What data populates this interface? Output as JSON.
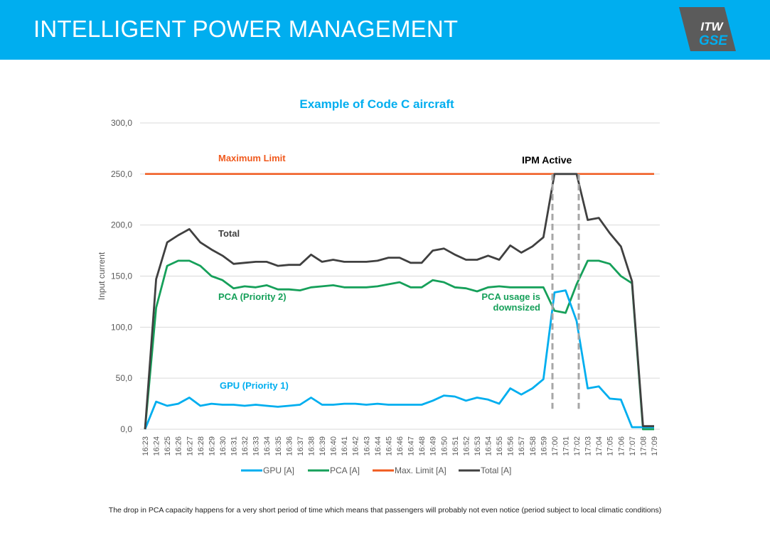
{
  "header": {
    "title": "INTELLIGENT POWER MANAGEMENT"
  },
  "logo": {
    "line1": "ITW",
    "line2": "GSE"
  },
  "footer": {
    "note": "The drop in PCA capacity happens for a very short period of time which means that passengers will probably not even notice  (period subject to local climatic conditions)"
  },
  "colors": {
    "header": "#00AEEF",
    "gpu": "#00AEEF",
    "pca": "#16A05A",
    "max": "#F05A1E",
    "total": "#404040",
    "ipm_lines": "#A6A6A6",
    "grid": "#D9D9D9"
  },
  "chart_data": {
    "type": "line",
    "title": "Example of Code C aircraft",
    "xlabel": "",
    "ylabel": "Input current",
    "ylim": [
      0,
      300
    ],
    "yticks": [
      "0,0",
      "50,0",
      "100,0",
      "150,0",
      "200,0",
      "250,0",
      "300,0"
    ],
    "grid": true,
    "legend_position": "bottom",
    "x": [
      "16:23",
      "16:24",
      "16:25",
      "16:26",
      "16:27",
      "16:28",
      "16:29",
      "16:30",
      "16:31",
      "16:32",
      "16:33",
      "16:34",
      "16:35",
      "16:36",
      "16:37",
      "16:38",
      "16:39",
      "16:40",
      "16:41",
      "16:42",
      "16:43",
      "16:44",
      "16:45",
      "16:46",
      "16:47",
      "16:48",
      "16:49",
      "16:50",
      "16:51",
      "16:52",
      "16:53",
      "16:54",
      "16:55",
      "16:56",
      "16:57",
      "16:58",
      "16:59",
      "17:00",
      "17:01",
      "17:02",
      "17:03",
      "17:04",
      "17:05",
      "17:06",
      "17:07",
      "17:08",
      "17:09"
    ],
    "series": [
      {
        "name": "GPU [A]",
        "color": "#00AEEF",
        "values": [
          0,
          27,
          23,
          25,
          31,
          23,
          25,
          24,
          24,
          23,
          24,
          23,
          22,
          23,
          24,
          31,
          24,
          24,
          25,
          25,
          24,
          25,
          24,
          24,
          24,
          24,
          28,
          33,
          32,
          28,
          31,
          29,
          25,
          40,
          34,
          40,
          49,
          134,
          136,
          106,
          40,
          42,
          30,
          29,
          2,
          2,
          2
        ]
      },
      {
        "name": "PCA [A]",
        "color": "#16A05A",
        "values": [
          0,
          119,
          160,
          165,
          165,
          160,
          150,
          146,
          138,
          140,
          139,
          141,
          137,
          137,
          136,
          139,
          140,
          141,
          139,
          139,
          139,
          140,
          142,
          144,
          139,
          139,
          146,
          144,
          139,
          138,
          135,
          139,
          140,
          139,
          139,
          139,
          139,
          116,
          114,
          142,
          165,
          165,
          162,
          150,
          143,
          0,
          0
        ]
      },
      {
        "name": "Max. Limit [A]",
        "color": "#F05A1E",
        "values": [
          250,
          250,
          250,
          250,
          250,
          250,
          250,
          250,
          250,
          250,
          250,
          250,
          250,
          250,
          250,
          250,
          250,
          250,
          250,
          250,
          250,
          250,
          250,
          250,
          250,
          250,
          250,
          250,
          250,
          250,
          250,
          250,
          250,
          250,
          250,
          250,
          250,
          250,
          250,
          250,
          250,
          250,
          250,
          250,
          250,
          250,
          250
        ]
      },
      {
        "name": "Total [A]",
        "color": "#404040",
        "values": [
          0,
          147,
          183,
          190,
          196,
          183,
          176,
          170,
          162,
          163,
          164,
          164,
          160,
          161,
          161,
          171,
          164,
          166,
          164,
          164,
          164,
          165,
          168,
          168,
          163,
          163,
          175,
          177,
          171,
          166,
          166,
          170,
          166,
          180,
          173,
          179,
          188,
          250,
          250,
          250,
          205,
          207,
          192,
          179,
          145,
          3,
          3
        ]
      }
    ],
    "annotations": {
      "max_limit": "Maximum Limit",
      "ipm_active": "IPM Active",
      "total": "Total",
      "pca": "PCA (Priority 2)",
      "pca_downsized_1": "PCA usage is",
      "pca_downsized_2": "downsized",
      "gpu": "GPU (Priority 1)"
    }
  }
}
